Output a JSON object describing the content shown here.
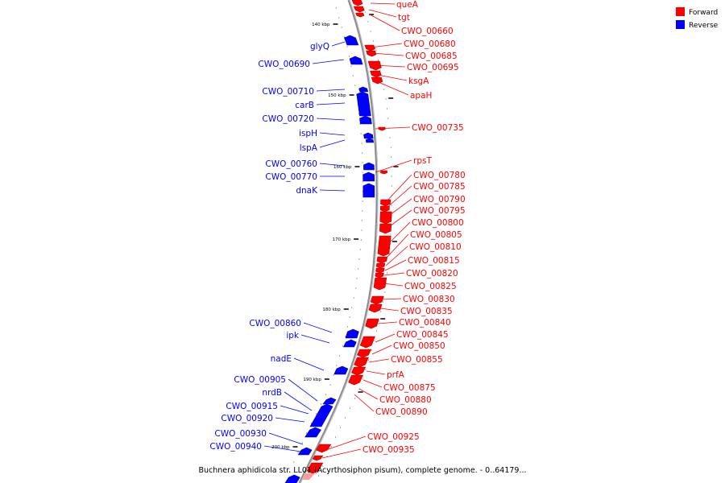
{
  "legend": {
    "forward_label": "Forward",
    "reverse_label": "Reverse",
    "forward_color": "#ff0000",
    "reverse_color": "#0000ff"
  },
  "caption": "Buchnera aphidicola str. LL01 (Acyrthosiphon pisum), complete genome. - 0..64179...",
  "ticks": [
    "140 kbp",
    "150 kbp",
    "160 kbp",
    "170 kbp",
    "180 kbp",
    "190 kbp",
    "200 kbp"
  ],
  "forward_genes": [
    "queA",
    "tgt",
    "CWO_00660",
    "CWO_00680",
    "CWO_00685",
    "CWO_00695",
    "ksgA",
    "apaH",
    "CWO_00735",
    "rpsT",
    "CWO_00780",
    "CWO_00785",
    "CWO_00790",
    "CWO_00795",
    "CWO_00800",
    "CWO_00805",
    "CWO_00810",
    "CWO_00815",
    "CWO_00820",
    "CWO_00825",
    "CWO_00830",
    "CWO_00835",
    "CWO_00840",
    "CWO_00845",
    "CWO_00850",
    "CWO_00855",
    "prfA",
    "CWO_00875",
    "CWO_00880",
    "CWO_00890",
    "CWO_00925",
    "CWO_00935"
  ],
  "reverse_genes": [
    "glyQ",
    "CWO_00690",
    "CWO_00710",
    "carB",
    "CWO_00720",
    "ispH",
    "lspA",
    "CWO_00760",
    "CWO_00770",
    "dnaK",
    "CWO_00860",
    "ipk",
    "nadE",
    "CWO_00905",
    "nrdB",
    "CWO_00915",
    "CWO_00920",
    "CWO_00930",
    "CWO_00940"
  ]
}
